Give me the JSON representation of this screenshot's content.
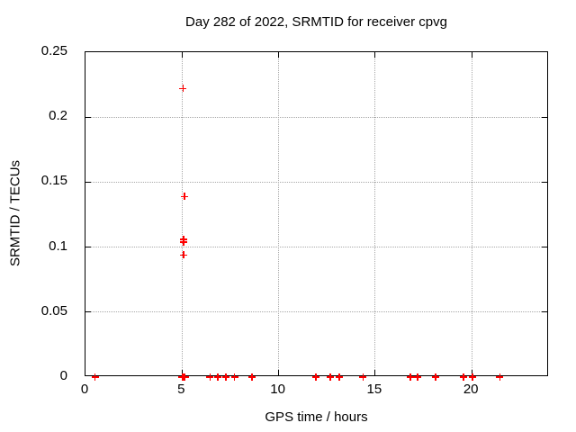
{
  "chart_data": {
    "type": "scatter",
    "title": "Day 282 of 2022, SRMTID for receiver cpvg",
    "xlabel": "GPS time / hours",
    "ylabel": "SRMTID / TECUs",
    "xlim": [
      0,
      24
    ],
    "ylim": [
      0,
      0.25
    ],
    "xticks": [
      0,
      5,
      10,
      15,
      20
    ],
    "xtick_labels": [
      "0",
      "5",
      "10",
      "15",
      "20"
    ],
    "yticks": [
      0,
      0.05,
      0.1,
      0.15,
      0.2,
      0.25
    ],
    "ytick_labels": [
      "0",
      "0.05",
      "0.1",
      "0.15",
      "0.2",
      "0.25"
    ],
    "grid": "dotted",
    "legend": "none",
    "marker": "plus",
    "marker_color": "#ff0000",
    "grid_color": "#a8a8a8",
    "border_color": "#000000",
    "background": "#ffffff",
    "series": [
      {
        "name": "SRMTID",
        "points": [
          [
            0.5,
            0
          ],
          [
            5.0,
            0
          ],
          [
            5.03,
            0
          ],
          [
            5.06,
            0
          ],
          [
            5.09,
            0
          ],
          [
            5.12,
            0
          ],
          [
            5.15,
            0
          ],
          [
            5.05,
            0.222
          ],
          [
            5.13,
            0.139
          ],
          [
            5.08,
            0.106
          ],
          [
            5.09,
            0.104
          ],
          [
            5.07,
            0.094
          ],
          [
            6.45,
            0
          ],
          [
            6.85,
            0
          ],
          [
            7.28,
            0
          ],
          [
            7.72,
            0
          ],
          [
            8.63,
            0
          ],
          [
            11.92,
            0
          ],
          [
            12.68,
            0
          ],
          [
            13.15,
            0
          ],
          [
            14.37,
            0
          ],
          [
            16.82,
            0
          ],
          [
            17.2,
            0
          ],
          [
            18.13,
            0
          ],
          [
            19.57,
            0
          ],
          [
            20.03,
            0
          ],
          [
            21.45,
            0
          ]
        ]
      }
    ]
  }
}
